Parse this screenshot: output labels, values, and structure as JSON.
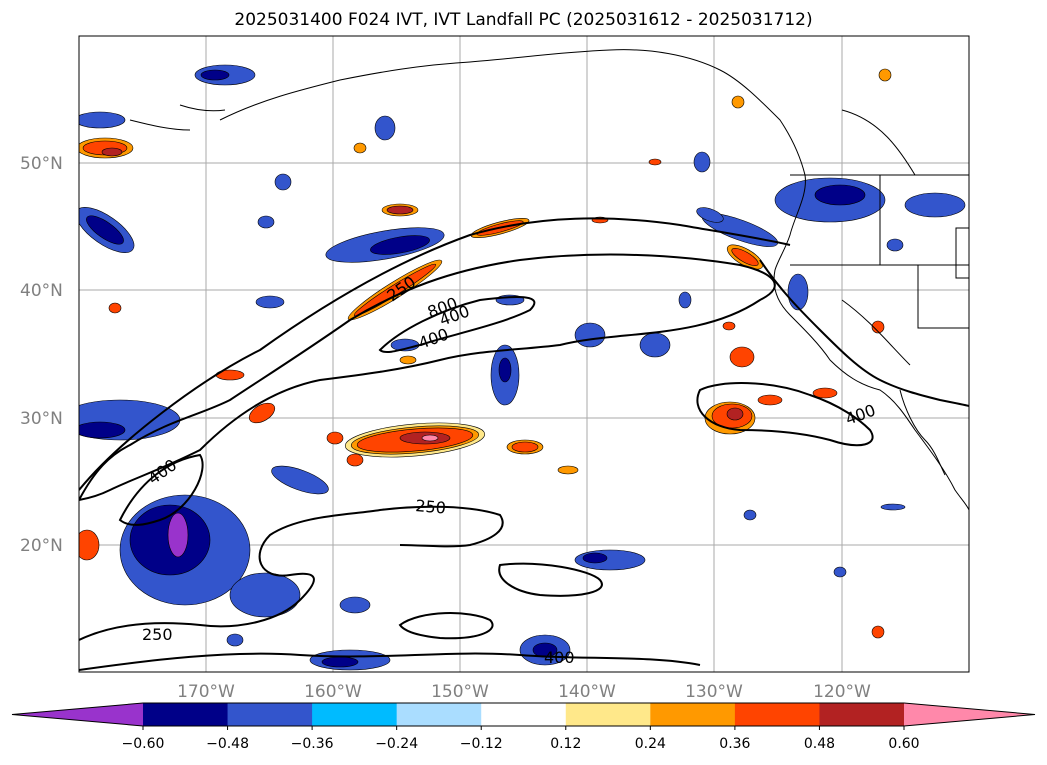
{
  "title": "2025031400 F024 IVT, IVT Landfall PC (2025031612 - 2025031712)",
  "latitude_labels": [
    "50°N",
    "40°N",
    "30°N",
    "20°N"
  ],
  "longitude_labels": [
    "170°W",
    "160°W",
    "150°W",
    "140°W",
    "130°W",
    "120°W"
  ],
  "contour_labels": [
    {
      "text": "250",
      "angle": -35
    },
    {
      "text": "800",
      "angle": -20
    },
    {
      "text": "400",
      "angle": -20
    },
    {
      "text": "400",
      "angle": -20
    },
    {
      "text": "400",
      "angle": -35
    },
    {
      "text": "400",
      "angle": -20
    },
    {
      "text": "250",
      "angle": 5
    },
    {
      "text": "250",
      "angle": 0
    },
    {
      "text": "400",
      "angle": 0
    }
  ],
  "colorbar": {
    "ticks": [
      "−0.60",
      "−0.48",
      "−0.36",
      "−0.24",
      "−0.12",
      "0.12",
      "0.24",
      "0.36",
      "0.48",
      "0.60"
    ],
    "colors": [
      "#9933cc",
      "#000088",
      "#3355cc",
      "#00bbff",
      "#aaddff",
      "#ffffff",
      "#ffe88a",
      "#ff9900",
      "#ff4400",
      "#b22222",
      "#ff88aa"
    ]
  }
}
